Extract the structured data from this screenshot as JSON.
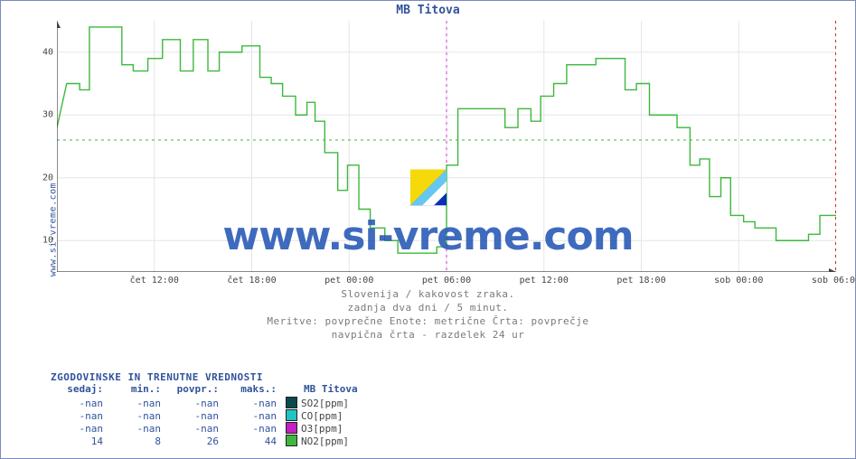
{
  "title": "MB Titova",
  "yaxis_label": "www.si-vreme.com",
  "watermark_text": "www.si-vreme.com",
  "caption_lines": [
    "Slovenija / kakovost zraka.",
    "zadnja dva dni / 5 minut.",
    "Meritve: povprečne  Enote: metrične  Črta: povprečje",
    "navpična črta - razdelek 24 ur"
  ],
  "chart": {
    "type": "line-step",
    "background_color": "#ffffff",
    "grid_color": "#e5e5e5",
    "axis_color": "#404040",
    "x_minor_tick_color": "#c0392b",
    "ylim": [
      5,
      45
    ],
    "yticks": [
      10,
      20,
      30,
      40
    ],
    "xlim_hours": [
      0,
      48
    ],
    "xticks": [
      {
        "t": 6,
        "label": "čet 12:00"
      },
      {
        "t": 12,
        "label": "čet 18:00"
      },
      {
        "t": 18,
        "label": "pet 00:00"
      },
      {
        "t": 24,
        "label": "pet 06:00"
      },
      {
        "t": 30,
        "label": "pet 12:00"
      },
      {
        "t": 36,
        "label": "pet 18:00"
      },
      {
        "t": 42,
        "label": "sob 00:00"
      },
      {
        "t": 48,
        "label": "sob 06:00"
      }
    ],
    "x_minor_step_hours": 1,
    "day_divider_t": 24,
    "day_divider_color": "#d733d7",
    "end_marker_t": 48,
    "end_marker_color": "#d92626",
    "average_line_value": 26,
    "average_line_color": "#3db83d",
    "series_color": "#3db83d",
    "series_line_width": 1.4,
    "series_step_points": [
      {
        "t": 0.0,
        "v": 28
      },
      {
        "t": 0.6,
        "v": 35
      },
      {
        "t": 1.4,
        "v": 35
      },
      {
        "t": 1.4,
        "v": 34
      },
      {
        "t": 2.0,
        "v": 34
      },
      {
        "t": 2.0,
        "v": 44
      },
      {
        "t": 4.0,
        "v": 44
      },
      {
        "t": 4.0,
        "v": 38
      },
      {
        "t": 4.7,
        "v": 38
      },
      {
        "t": 4.7,
        "v": 37
      },
      {
        "t": 5.6,
        "v": 37
      },
      {
        "t": 5.6,
        "v": 39
      },
      {
        "t": 6.5,
        "v": 39
      },
      {
        "t": 6.5,
        "v": 42
      },
      {
        "t": 7.6,
        "v": 42
      },
      {
        "t": 7.6,
        "v": 37
      },
      {
        "t": 8.4,
        "v": 37
      },
      {
        "t": 8.4,
        "v": 42
      },
      {
        "t": 9.3,
        "v": 42
      },
      {
        "t": 9.3,
        "v": 37
      },
      {
        "t": 10.0,
        "v": 37
      },
      {
        "t": 10.0,
        "v": 40
      },
      {
        "t": 11.4,
        "v": 40
      },
      {
        "t": 11.4,
        "v": 41
      },
      {
        "t": 12.5,
        "v": 41
      },
      {
        "t": 12.5,
        "v": 36
      },
      {
        "t": 13.2,
        "v": 36
      },
      {
        "t": 13.2,
        "v": 35
      },
      {
        "t": 13.9,
        "v": 35
      },
      {
        "t": 13.9,
        "v": 33
      },
      {
        "t": 14.7,
        "v": 33
      },
      {
        "t": 14.7,
        "v": 30
      },
      {
        "t": 15.4,
        "v": 30
      },
      {
        "t": 15.4,
        "v": 32
      },
      {
        "t": 15.9,
        "v": 32
      },
      {
        "t": 15.9,
        "v": 29
      },
      {
        "t": 16.5,
        "v": 29
      },
      {
        "t": 16.5,
        "v": 24
      },
      {
        "t": 17.3,
        "v": 24
      },
      {
        "t": 17.3,
        "v": 18
      },
      {
        "t": 17.9,
        "v": 18
      },
      {
        "t": 17.9,
        "v": 22
      },
      {
        "t": 18.6,
        "v": 22
      },
      {
        "t": 18.6,
        "v": 15
      },
      {
        "t": 19.3,
        "v": 15
      },
      {
        "t": 19.3,
        "v": 12
      },
      {
        "t": 20.2,
        "v": 12
      },
      {
        "t": 20.2,
        "v": 10
      },
      {
        "t": 21.0,
        "v": 10
      },
      {
        "t": 21.0,
        "v": 8
      },
      {
        "t": 23.4,
        "v": 8
      },
      {
        "t": 23.4,
        "v": 9
      },
      {
        "t": 24.0,
        "v": 9
      },
      {
        "t": 24.0,
        "v": 22
      },
      {
        "t": 24.7,
        "v": 22
      },
      {
        "t": 24.7,
        "v": 31
      },
      {
        "t": 27.6,
        "v": 31
      },
      {
        "t": 27.6,
        "v": 28
      },
      {
        "t": 28.4,
        "v": 28
      },
      {
        "t": 28.4,
        "v": 31
      },
      {
        "t": 29.2,
        "v": 31
      },
      {
        "t": 29.2,
        "v": 29
      },
      {
        "t": 29.8,
        "v": 29
      },
      {
        "t": 29.8,
        "v": 33
      },
      {
        "t": 30.6,
        "v": 33
      },
      {
        "t": 30.6,
        "v": 35
      },
      {
        "t": 31.4,
        "v": 35
      },
      {
        "t": 31.4,
        "v": 38
      },
      {
        "t": 33.2,
        "v": 38
      },
      {
        "t": 33.2,
        "v": 39
      },
      {
        "t": 35.0,
        "v": 39
      },
      {
        "t": 35.0,
        "v": 34
      },
      {
        "t": 35.7,
        "v": 34
      },
      {
        "t": 35.7,
        "v": 35
      },
      {
        "t": 36.5,
        "v": 35
      },
      {
        "t": 36.5,
        "v": 30
      },
      {
        "t": 38.2,
        "v": 30
      },
      {
        "t": 38.2,
        "v": 28
      },
      {
        "t": 39.0,
        "v": 28
      },
      {
        "t": 39.0,
        "v": 22
      },
      {
        "t": 39.6,
        "v": 22
      },
      {
        "t": 39.6,
        "v": 23
      },
      {
        "t": 40.2,
        "v": 23
      },
      {
        "t": 40.2,
        "v": 17
      },
      {
        "t": 40.9,
        "v": 17
      },
      {
        "t": 40.9,
        "v": 20
      },
      {
        "t": 41.5,
        "v": 20
      },
      {
        "t": 41.5,
        "v": 14
      },
      {
        "t": 42.3,
        "v": 14
      },
      {
        "t": 42.3,
        "v": 13
      },
      {
        "t": 43.0,
        "v": 13
      },
      {
        "t": 43.0,
        "v": 12
      },
      {
        "t": 44.3,
        "v": 12
      },
      {
        "t": 44.3,
        "v": 10
      },
      {
        "t": 46.3,
        "v": 10
      },
      {
        "t": 46.3,
        "v": 11
      },
      {
        "t": 47.0,
        "v": 11
      },
      {
        "t": 47.0,
        "v": 14
      },
      {
        "t": 48.0,
        "v": 14
      }
    ]
  },
  "stats": {
    "title": "ZGODOVINSKE IN TRENUTNE VREDNOSTI",
    "columns": [
      "sedaj:",
      "min.:",
      "povpr.:",
      "maks.:"
    ],
    "series_header": "MB Titova",
    "rows": [
      {
        "values": [
          "-nan",
          "-nan",
          "-nan",
          "-nan"
        ],
        "swatch": "#0c4a4a",
        "label": "SO2[ppm]"
      },
      {
        "values": [
          "-nan",
          "-nan",
          "-nan",
          "-nan"
        ],
        "swatch": "#20c4c4",
        "label": "CO[ppm]"
      },
      {
        "values": [
          "-nan",
          "-nan",
          "-nan",
          "-nan"
        ],
        "swatch": "#c31fc3",
        "label": "O3[ppm]"
      },
      {
        "values": [
          "14",
          "8",
          "26",
          "44"
        ],
        "swatch": "#3db83d",
        "label": "NO2[ppm]"
      }
    ]
  },
  "colors": {
    "title": "#31539b",
    "frame_border": "#7c89c0",
    "caption_text": "#7a7a7a",
    "stats_text": "#31539b"
  }
}
